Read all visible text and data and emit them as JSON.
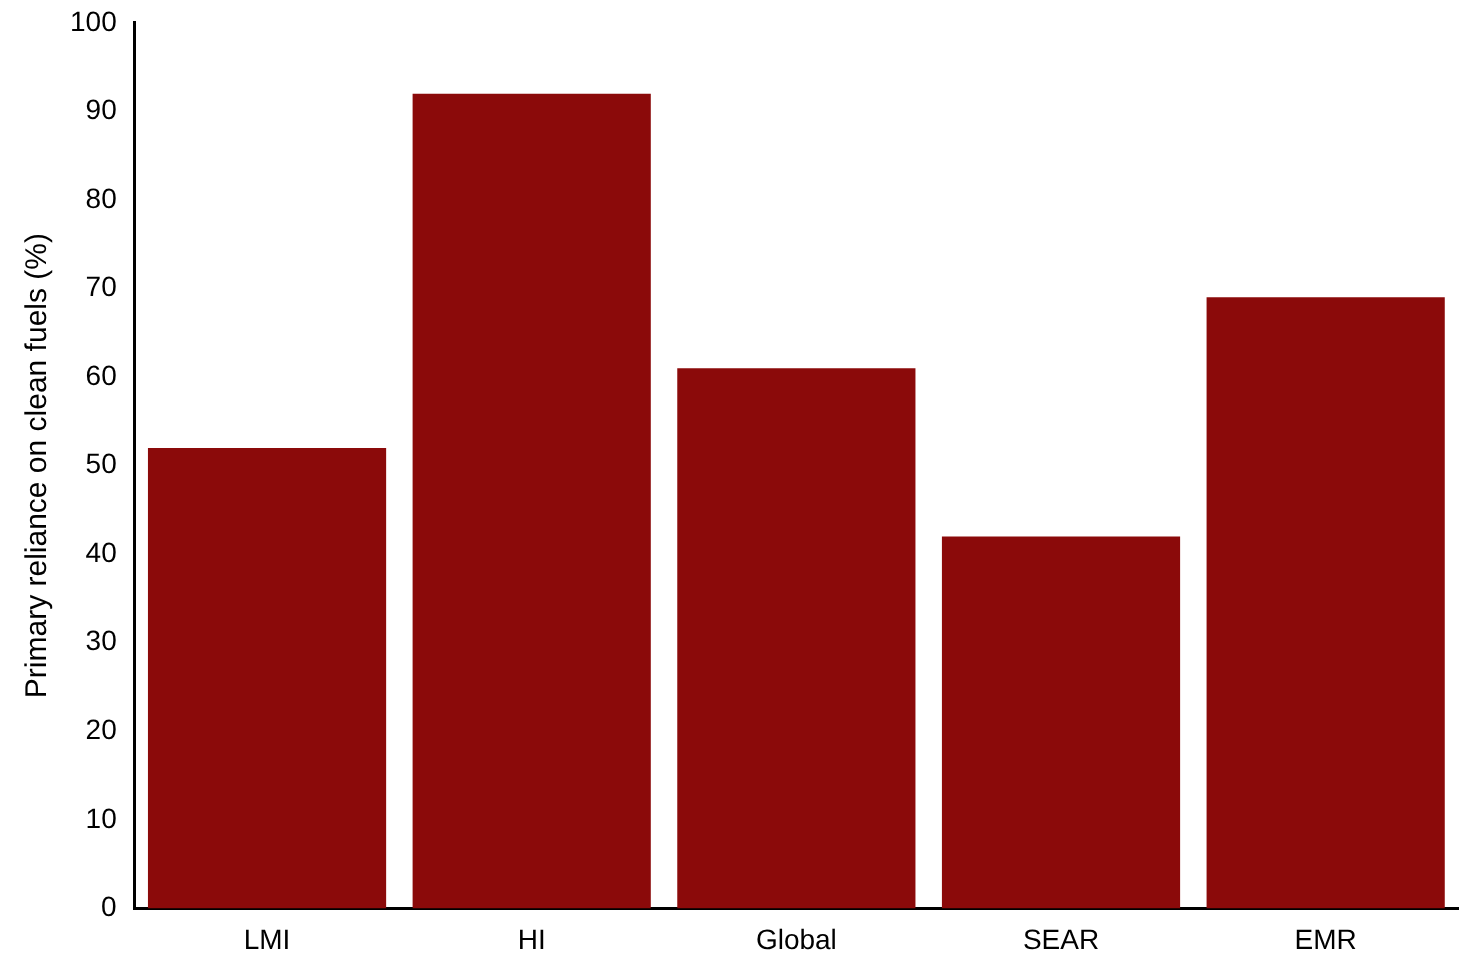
{
  "chart_data": {
    "type": "bar",
    "ylabel": "Primary reliance on clean fuels (%)",
    "categories": [
      "LMI",
      "HI",
      "Global",
      "SEAR",
      "EMR"
    ],
    "values": [
      52,
      92,
      61,
      42,
      69
    ],
    "color": "#8b0a0a",
    "ylim": [
      0,
      100
    ],
    "yticks": [
      0,
      10,
      20,
      30,
      40,
      50,
      60,
      70,
      80,
      90,
      100
    ],
    "grid": false,
    "legend": false
  }
}
